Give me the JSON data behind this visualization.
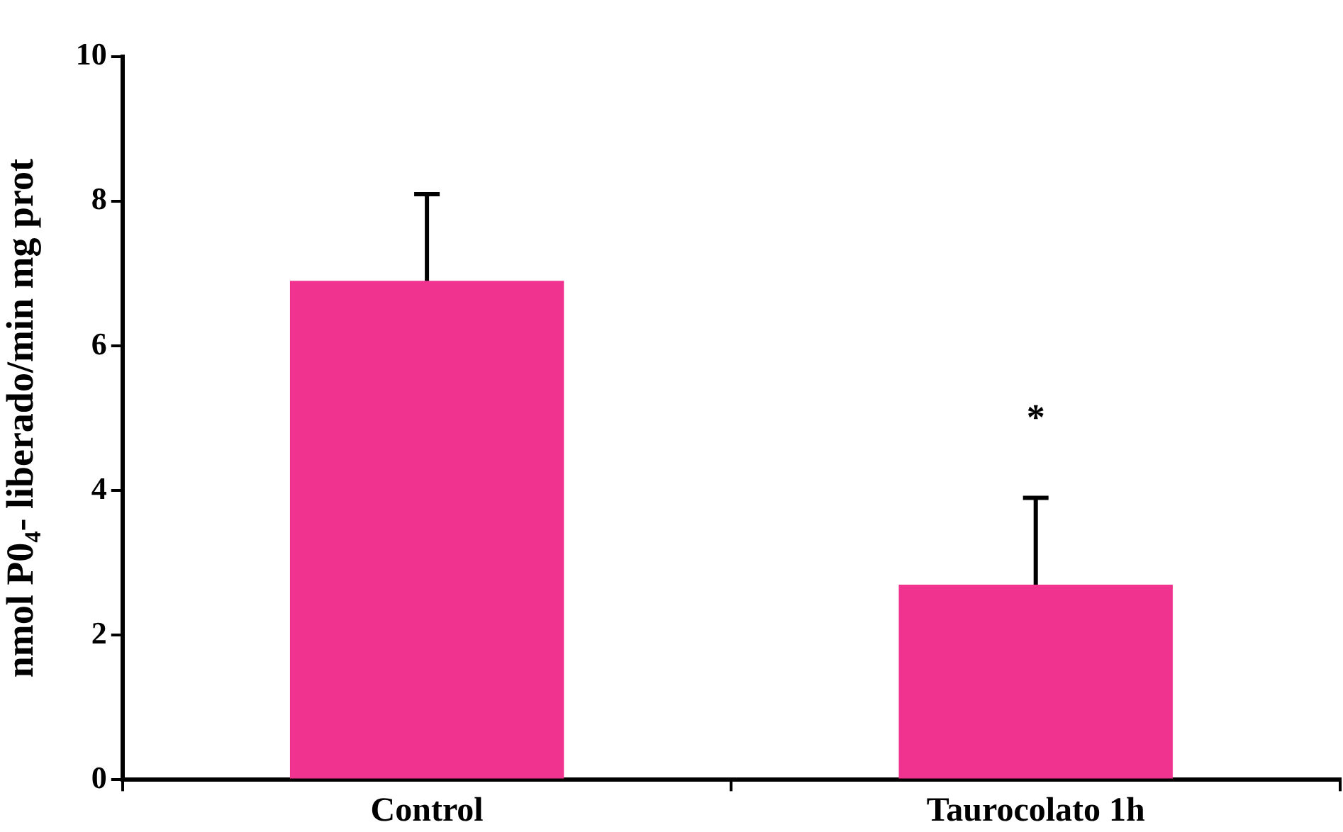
{
  "chart_data": {
    "type": "bar",
    "ylabel": "nmol P0₄- liberado/min mg prot",
    "categories": [
      "Control",
      "Taurocolato 1h"
    ],
    "values": [
      6.9,
      2.7
    ],
    "errors": [
      1.2,
      1.2
    ],
    "color": "#f0338f",
    "ylim": [
      0,
      10
    ],
    "yticks": [
      0,
      2,
      4,
      6,
      8,
      10
    ],
    "grid": false,
    "legend": false,
    "annotations": [
      "*"
    ]
  }
}
